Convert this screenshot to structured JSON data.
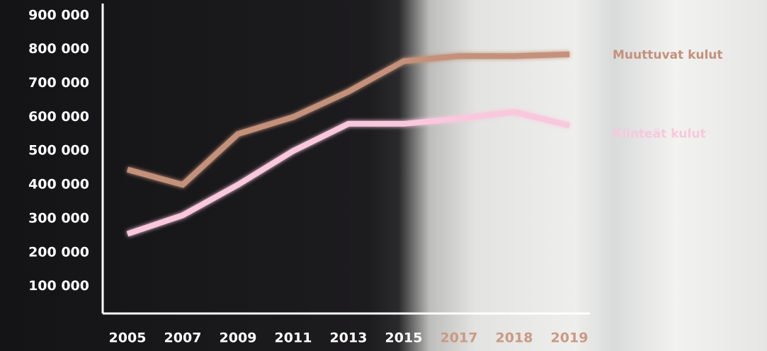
{
  "chart_data": {
    "type": "line",
    "categories": [
      "2005",
      "2007",
      "2009",
      "2011",
      "2013",
      "2015",
      "2017",
      "2018",
      "2019"
    ],
    "series": [
      {
        "name": "Muuttuvat kulut",
        "color": "#c4917a",
        "values": [
          445000,
          400000,
          550000,
          600000,
          675000,
          765000,
          780000,
          780000,
          785000
        ]
      },
      {
        "name": "Kiinteät kulut",
        "color": "#f9c8dc",
        "values": [
          255000,
          310000,
          400000,
          500000,
          580000,
          580000,
          595000,
          615000,
          575000
        ]
      }
    ],
    "ylim": [
      20000,
      935000
    ],
    "yticks": [
      {
        "value": 100000,
        "label": "100 000"
      },
      {
        "value": 200000,
        "label": "200 000"
      },
      {
        "value": 300000,
        "label": "300 000"
      },
      {
        "value": 400000,
        "label": "400 000"
      },
      {
        "value": 500000,
        "label": "500 000"
      },
      {
        "value": 600000,
        "label": "600 000"
      },
      {
        "value": 700000,
        "label": "700 000"
      },
      {
        "value": 800000,
        "label": "800 000"
      },
      {
        "value": 900000,
        "label": "900 000"
      }
    ],
    "grid": false,
    "legend": "right"
  }
}
